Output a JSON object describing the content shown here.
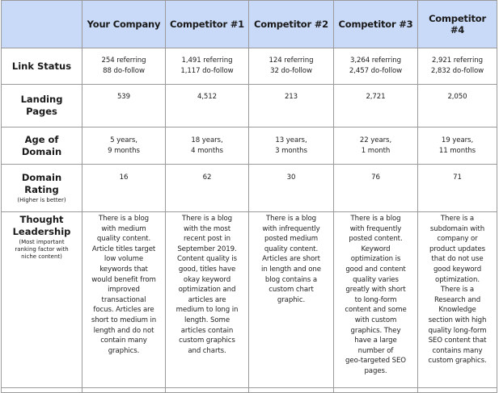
{
  "header": {
    "corner": "",
    "columns": [
      "Your Company",
      "Competitor #1",
      "Competitor #2",
      "Competitor #3",
      "Competitor #4"
    ]
  },
  "rows": {
    "link_status": {
      "label": "Link Status",
      "values": [
        "254 referring\n88 do-follow",
        "1,491 referring\n1,117 do-follow",
        "124 referring\n32 do-follow",
        "3,264 referring\n2,457 do-follow",
        "2,921 referring\n2,832 do-follow"
      ]
    },
    "landing_pages": {
      "label": "Landing\nPages",
      "values": [
        "539",
        "4,512",
        "213",
        "2,721",
        "2,050"
      ]
    },
    "age_of_domain": {
      "label": "Age of\nDomain",
      "values": [
        "5 years,\n9 months",
        "18 years,\n4 months",
        "13 years,\n3 months",
        "22 years,\n1 month",
        "19 years,\n11 months"
      ]
    },
    "domain_rating": {
      "label": "Domain\nRating",
      "note": "(Higher is better)",
      "values": [
        "16",
        "62",
        "30",
        "76",
        "71"
      ]
    },
    "thought_leadership": {
      "label": "Thought\nLeadership",
      "note": "(Most important\nranking factor with\nniche content)",
      "values": [
        "There is a blog\nwith medium\nquality content.\nArticle titles target\nlow volume\nkeywords that\nwould benefit from\nimproved\ntransactional\nfocus. Articles are\nshort to medium in\nlength and do not\ncontain many\ngraphics.",
        "There is a blog\nwith the most\nrecent post in\nSeptember 2019.\nContent quality is\ngood, titles have\nokay keyword\noptimization and\narticles are\nmedium to long in\nlength. Some\narticles contain\ncustom graphics\nand charts.",
        "There is a blog\nwith infrequently\nposted medium\nquality content.\nArticles are short\nin length and one\nblog contains a\ncustom chart\ngraphic.",
        "There is a blog\nwith frequently\nposted content.\nKeyword\noptimization is\ngood and content\nquality varies\ngreatly with short\nto long-form\ncontent and some\nwith custom\ngraphics. They\nhave a large\nnumber of\ngeo-targeted SEO\npages.",
        "There is a\nsubdomain with\ncompany or\nproduct updates\nthat do not use\ngood keyword\noptimization.\nThere is a\nResearch and\nKnowledge\nsection with high\nquality long-form\nSEO content that\ncontains many\ncustom graphics."
      ]
    }
  }
}
